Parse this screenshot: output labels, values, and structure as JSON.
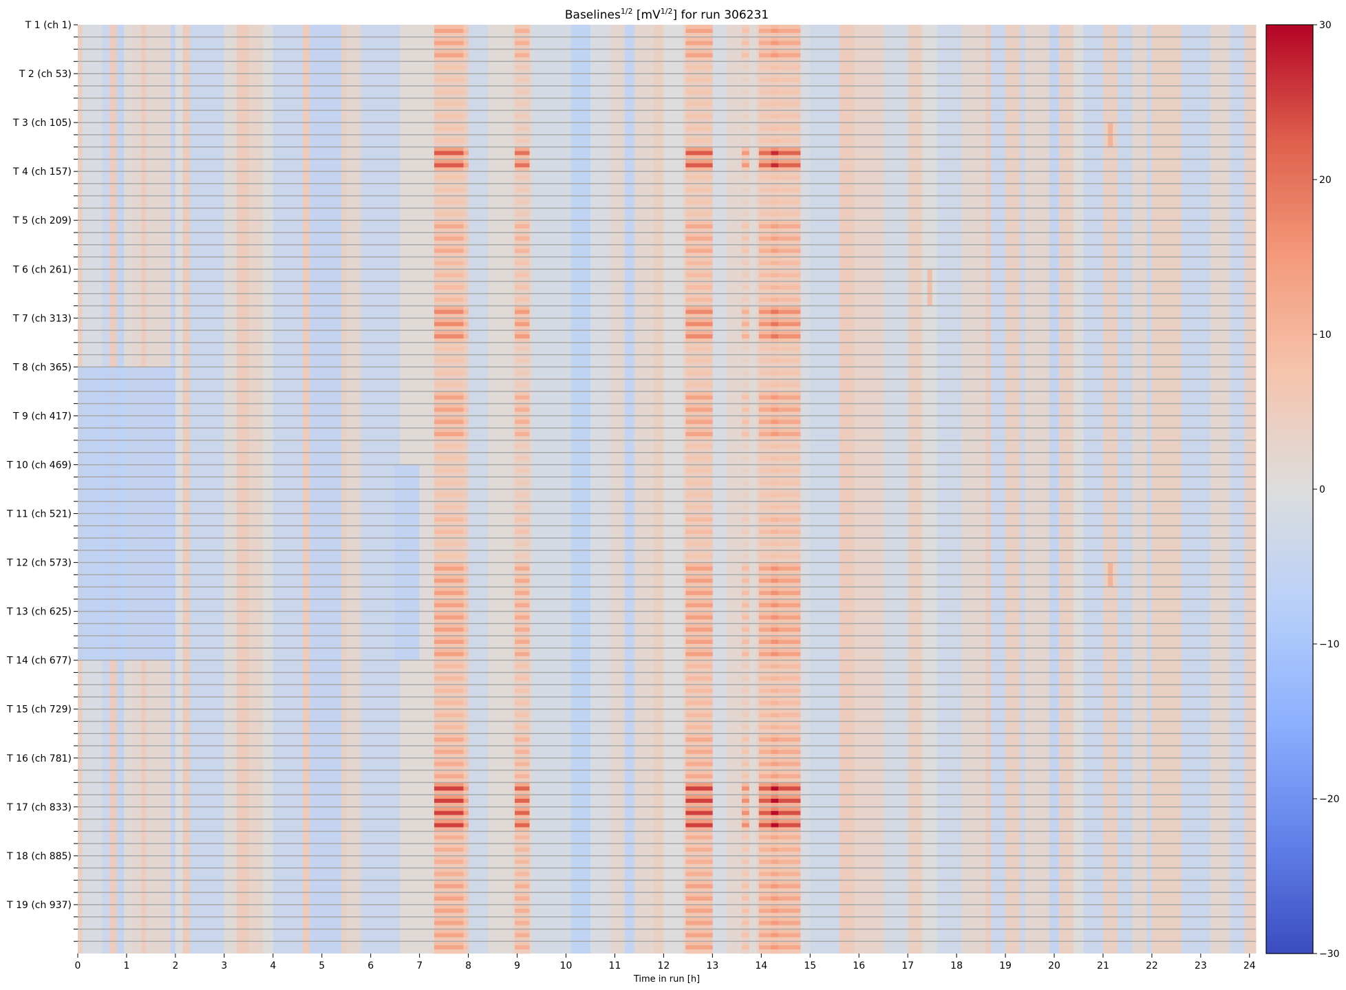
{
  "chart_data": {
    "type": "heatmap",
    "title_parts": [
      "Baselines",
      "1/2",
      " [mV",
      "1/2",
      "] for run 306231"
    ],
    "xlabel": "Time in run [h]",
    "ylabel": "",
    "xlim": [
      0,
      24.13
    ],
    "x_ticks": [
      "0",
      "1",
      "2",
      "3",
      "4",
      "5",
      "6",
      "7",
      "8",
      "9",
      "10",
      "11",
      "12",
      "13",
      "14",
      "15",
      "16",
      "17",
      "18",
      "19",
      "20",
      "21",
      "22",
      "23",
      "24"
    ],
    "y_tick_labels": [
      "T 1 (ch 1)",
      "T 2 (ch 53)",
      "T 3 (ch 105)",
      "T 4 (ch 157)",
      "T 5 (ch 209)",
      "T 6 (ch 261)",
      "T 7 (ch 313)",
      "T 8 (ch 365)",
      "T 9 (ch 417)",
      "T 10 (ch 469)",
      "T 11 (ch 521)",
      "T 12 (ch 573)",
      "T 13 (ch 625)",
      "T 14 (ch 677)",
      "T 15 (ch 729)",
      "T 16 (ch 781)",
      "T 17 (ch 833)",
      "T 18 (ch 885)",
      "T 19 (ch 937)"
    ],
    "channel_groups": 76,
    "channels_per_group": 13,
    "colormap": "coolwarm",
    "colorbar": {
      "range": [
        -30,
        30
      ],
      "ticks": [
        "30",
        "20",
        "10",
        "0",
        "−10",
        "−20",
        "−30"
      ],
      "tick_values": [
        30,
        20,
        10,
        0,
        -10,
        -20,
        -30
      ]
    },
    "column_segments": [
      [
        0,
        0.1,
        4
      ],
      [
        0.1,
        0.5,
        -1
      ],
      [
        0.5,
        0.65,
        -4
      ],
      [
        0.65,
        0.8,
        5
      ],
      [
        0.8,
        0.95,
        -5
      ],
      [
        0.95,
        1.1,
        1
      ],
      [
        1.1,
        1.3,
        2
      ],
      [
        1.3,
        1.4,
        5
      ],
      [
        1.4,
        1.9,
        2
      ],
      [
        1.9,
        2.0,
        -5
      ],
      [
        2.0,
        2.15,
        0
      ],
      [
        2.15,
        2.3,
        5
      ],
      [
        2.3,
        3.0,
        -4
      ],
      [
        3.0,
        3.25,
        1
      ],
      [
        3.25,
        3.5,
        5
      ],
      [
        3.5,
        3.8,
        3
      ],
      [
        3.8,
        4.0,
        0
      ],
      [
        4.0,
        4.6,
        -4
      ],
      [
        4.6,
        4.75,
        5
      ],
      [
        4.75,
        5.4,
        -5
      ],
      [
        5.4,
        5.5,
        4
      ],
      [
        5.5,
        5.8,
        2
      ],
      [
        5.8,
        6.6,
        -4
      ],
      [
        6.6,
        7.3,
        1
      ],
      [
        7.3,
        8.0,
        3
      ],
      [
        8.0,
        8.4,
        -3
      ],
      [
        8.4,
        8.9,
        1
      ],
      [
        8.9,
        9.3,
        2
      ],
      [
        9.3,
        10.1,
        -2
      ],
      [
        10.1,
        10.5,
        -6
      ],
      [
        10.5,
        10.9,
        -1
      ],
      [
        10.9,
        11.2,
        2
      ],
      [
        11.2,
        11.4,
        -5
      ],
      [
        11.4,
        11.8,
        2
      ],
      [
        11.8,
        12.0,
        4
      ],
      [
        12.0,
        12.4,
        0
      ],
      [
        12.4,
        13.0,
        3
      ],
      [
        13.0,
        13.3,
        -1
      ],
      [
        13.3,
        13.6,
        2
      ],
      [
        13.6,
        13.9,
        1
      ],
      [
        13.9,
        14.8,
        3
      ],
      [
        14.8,
        15.0,
        -1
      ],
      [
        15.0,
        15.6,
        -3
      ],
      [
        15.6,
        15.9,
        5
      ],
      [
        15.9,
        16.5,
        3
      ],
      [
        16.5,
        17.0,
        -2
      ],
      [
        17.0,
        17.3,
        4
      ],
      [
        17.3,
        17.6,
        0
      ],
      [
        17.6,
        18.1,
        -3
      ],
      [
        18.1,
        18.6,
        2
      ],
      [
        18.6,
        18.7,
        5
      ],
      [
        18.7,
        19.0,
        -4
      ],
      [
        19.0,
        19.3,
        4
      ],
      [
        19.3,
        19.4,
        -4
      ],
      [
        19.4,
        19.9,
        2
      ],
      [
        19.9,
        20.1,
        -5
      ],
      [
        20.1,
        20.4,
        4
      ],
      [
        20.4,
        20.6,
        0
      ],
      [
        20.6,
        21.0,
        -4
      ],
      [
        21.0,
        21.3,
        4
      ],
      [
        21.3,
        21.6,
        -4
      ],
      [
        21.6,
        21.9,
        2
      ],
      [
        21.9,
        22.0,
        -4
      ],
      [
        22.0,
        22.6,
        4
      ],
      [
        22.6,
        23.2,
        -4
      ],
      [
        23.2,
        23.6,
        2
      ],
      [
        23.6,
        23.9,
        -4
      ],
      [
        23.9,
        24.13,
        4
      ]
    ],
    "hot_bands": [
      {
        "t": [
          7.3,
          7.9
        ],
        "weight": 1.0
      },
      {
        "t": [
          7.9,
          8.0
        ],
        "weight": 0.5
      },
      {
        "t": [
          8.95,
          9.25
        ],
        "weight": 0.9
      },
      {
        "t": [
          12.45,
          13.0
        ],
        "weight": 1.0
      },
      {
        "t": [
          13.6,
          13.75
        ],
        "weight": 0.7
      },
      {
        "t": [
          13.95,
          14.2
        ],
        "weight": 0.9
      },
      {
        "t": [
          14.2,
          14.35
        ],
        "weight": 1.2
      },
      {
        "t": [
          14.35,
          14.8
        ],
        "weight": 0.95
      }
    ],
    "group_intensity": [
      10,
      10,
      10,
      4,
      4,
      4,
      4,
      4,
      4,
      4,
      20,
      20,
      4,
      4,
      4,
      4,
      9,
      9,
      9,
      6,
      6,
      6,
      6,
      14,
      14,
      14,
      4,
      4,
      4,
      4,
      10,
      10,
      10,
      10,
      4,
      4,
      4,
      4,
      4,
      4,
      6,
      6,
      4,
      4,
      11,
      11,
      11,
      11,
      11,
      11,
      11,
      11,
      6,
      6,
      6,
      6,
      6,
      6,
      9,
      9,
      9,
      9,
      22,
      22,
      22,
      22,
      8,
      8,
      8,
      8,
      10,
      10,
      10,
      10,
      10,
      10
    ],
    "regions": [
      {
        "t": [
          0,
          2.0
        ],
        "groups": [
          28,
          52
        ],
        "value": -7
      },
      {
        "t": [
          6.5,
          7.0
        ],
        "groups": [
          36,
          52
        ],
        "value": -7
      },
      {
        "t": [
          21.1,
          21.2
        ],
        "groups": [
          8,
          10
        ],
        "value": 12
      },
      {
        "t": [
          21.1,
          21.2
        ],
        "groups": [
          44,
          46
        ],
        "value": 12
      },
      {
        "t": [
          17.4,
          17.5
        ],
        "groups": [
          20,
          23
        ],
        "value": 10
      }
    ]
  }
}
